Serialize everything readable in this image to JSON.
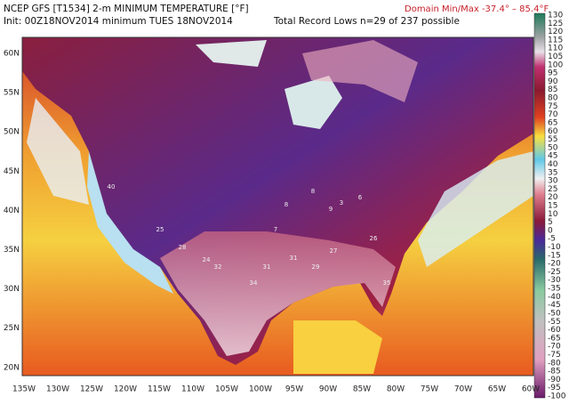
{
  "header": {
    "line1": "NCEP GFS [T1534] 2-m MINIMUM TEMPERATURE [°F]",
    "line2": "Init: 00Z18NOV2014 minimum TUES 18NOV2014",
    "record": "Total Record Lows n=29 of 237 possible",
    "domain": "Domain Min/Max -37.4°  –  85.4°F"
  },
  "lat_labels": [
    "60N",
    "55N",
    "50N",
    "45N",
    "40N",
    "35N",
    "30N",
    "25N",
    "20N"
  ],
  "lon_labels": [
    "135W",
    "130W",
    "125W",
    "120W",
    "115W",
    "110W",
    "105W",
    "100W",
    "95W",
    "90W",
    "85W",
    "80W",
    "75W",
    "70W",
    "65W",
    "60W"
  ],
  "colorbar_labels": [
    "130",
    "125",
    "120",
    "115",
    "110",
    "105",
    "100",
    "95",
    "90",
    "85",
    "80",
    "75",
    "70",
    "65",
    "60",
    "55",
    "50",
    "45",
    "40",
    "35",
    "30",
    "25",
    "20",
    "15",
    "10",
    "5",
    "0",
    "-5",
    "-10",
    "-15",
    "-20",
    "-25",
    "-30",
    "-35",
    "-40",
    "-45",
    "-50",
    "-55",
    "-60",
    "-65",
    "-70",
    "-75",
    "-80",
    "-85",
    "-90",
    "-95",
    "-100"
  ],
  "station_labels": [
    "8",
    "3",
    "6",
    "9",
    "8",
    "7",
    "31",
    "25",
    "28",
    "32",
    "34",
    "29",
    "40",
    "24",
    "26",
    "31",
    "35",
    "27"
  ]
}
